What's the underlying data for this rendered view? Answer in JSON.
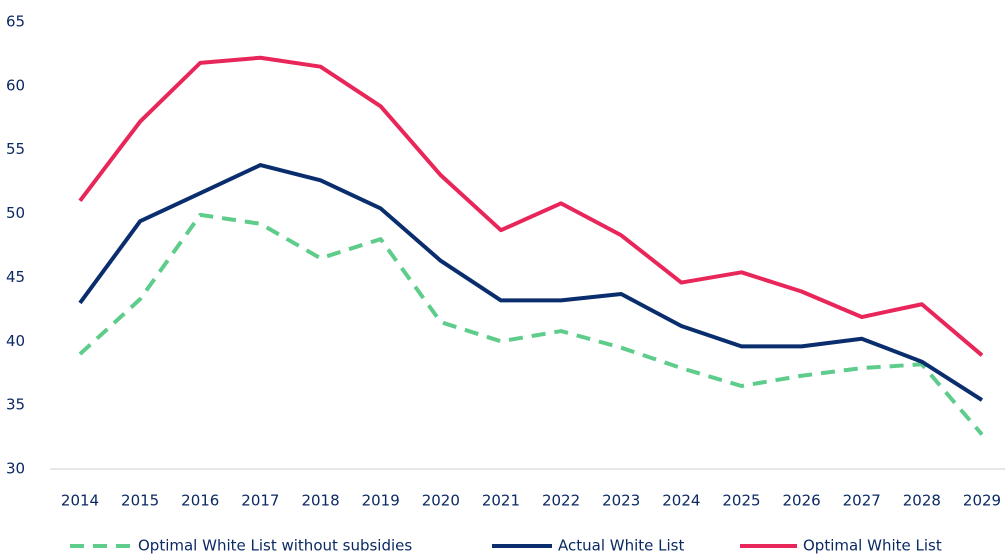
{
  "chart_data": {
    "type": "line",
    "categories": [
      "2014",
      "2015",
      "2016",
      "2017",
      "2018",
      "2019",
      "2020",
      "2021",
      "2022",
      "2023",
      "2024",
      "2025",
      "2026",
      "2027",
      "2028",
      "2029"
    ],
    "series": [
      {
        "name": "Optimal White List without subsidies",
        "color": "#5ecc8a",
        "line_style": "dashed",
        "values": [
          39.0,
          43.3,
          49.9,
          49.2,
          46.5,
          48.0,
          41.5,
          40.0,
          40.8,
          39.5,
          37.9,
          36.5,
          37.3,
          37.9,
          38.2,
          32.7
        ]
      },
      {
        "name": "Actual White List",
        "color": "#0a2d6e",
        "line_style": "solid",
        "values": [
          43.0,
          49.4,
          51.6,
          53.8,
          52.6,
          50.4,
          46.3,
          43.2,
          43.2,
          43.7,
          41.2,
          39.6,
          39.6,
          40.2,
          38.4,
          35.4
        ]
      },
      {
        "name": "Optimal White List",
        "color": "#e8265a",
        "line_style": "solid",
        "values": [
          51.0,
          57.2,
          61.8,
          62.2,
          61.5,
          58.4,
          53.0,
          48.7,
          50.8,
          48.3,
          44.6,
          45.4,
          43.9,
          41.9,
          42.9,
          38.9
        ]
      }
    ],
    "ylim": [
      30,
      65
    ],
    "yticks": [
      30,
      35,
      40,
      45,
      50,
      55,
      60,
      65
    ],
    "grid": false,
    "legend": "bottom"
  }
}
